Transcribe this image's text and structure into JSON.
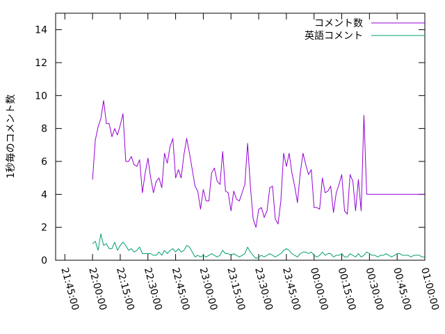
{
  "chart_data": {
    "type": "line",
    "title": "",
    "xlabel": "",
    "ylabel": "1秒毎のコメント数",
    "ylim": [
      0,
      15
    ],
    "yticks": [
      0,
      2,
      4,
      6,
      8,
      10,
      12,
      14
    ],
    "ytick_labels": [
      "0",
      "2",
      "4",
      "6",
      "8",
      "10",
      "12",
      "14"
    ],
    "xlim": [
      "21:40:00",
      "01:00:00"
    ],
    "xticks": [
      "21:45:00",
      "22:00:00",
      "22:15:00",
      "22:30:00",
      "22:45:00",
      "23:00:00",
      "23:15:00",
      "23:30:00",
      "23:45:00",
      "00:00:00",
      "00:15:00",
      "00:30:00",
      "00:45:00",
      "01:00:00"
    ],
    "grid": false,
    "legend_position": "top-right",
    "series": [
      {
        "name": "コメント数",
        "color": "#9400d3",
        "x": [
          "22:00:00",
          "22:01:30",
          "22:03:00",
          "22:04:30",
          "22:06:00",
          "22:07:30",
          "22:09:00",
          "22:10:30",
          "22:12:00",
          "22:13:30",
          "22:15:00",
          "22:16:30",
          "22:18:00",
          "22:19:30",
          "22:21:00",
          "22:22:30",
          "22:24:00",
          "22:25:30",
          "22:27:00",
          "22:28:30",
          "22:30:00",
          "22:31:30",
          "22:33:00",
          "22:34:30",
          "22:36:00",
          "22:37:30",
          "22:39:00",
          "22:40:30",
          "22:42:00",
          "22:43:30",
          "22:45:00",
          "22:46:30",
          "22:48:00",
          "22:49:30",
          "22:51:00",
          "22:52:30",
          "22:54:00",
          "22:55:30",
          "22:57:00",
          "22:58:30",
          "23:00:00",
          "23:01:30",
          "23:03:00",
          "23:04:30",
          "23:06:00",
          "23:07:30",
          "23:09:00",
          "23:10:30",
          "23:12:00",
          "23:13:30",
          "23:15:00",
          "23:16:30",
          "23:18:00",
          "23:19:30",
          "23:21:00",
          "23:22:30",
          "23:24:00",
          "23:25:30",
          "23:27:00",
          "23:28:30",
          "23:30:00",
          "23:31:30",
          "23:33:00",
          "23:34:30",
          "23:36:00",
          "23:37:30",
          "23:39:00",
          "23:40:30",
          "23:42:00",
          "23:43:30",
          "23:45:00",
          "23:46:30",
          "23:48:00",
          "23:49:30",
          "23:51:00",
          "23:52:30",
          "23:54:00",
          "23:55:30",
          "23:57:00",
          "23:58:30",
          "00:00:00",
          "00:01:30",
          "00:03:00",
          "00:04:30",
          "00:06:00",
          "00:07:30",
          "00:09:00",
          "00:10:30",
          "00:12:00",
          "00:13:30",
          "00:15:00",
          "00:16:30",
          "00:18:00",
          "00:19:30",
          "00:21:00",
          "00:22:30",
          "00:24:00",
          "00:25:30",
          "00:27:00",
          "00:28:30",
          "00:30:00",
          "00:31:30",
          "00:33:00",
          "00:34:30",
          "00:36:00",
          "00:37:30",
          "00:39:00",
          "00:40:30",
          "00:42:00",
          "00:43:30",
          "00:45:00",
          "00:46:30",
          "00:48:00",
          "00:49:30",
          "00:51:00",
          "00:52:30",
          "00:54:00",
          "00:55:30",
          "00:57:00",
          "00:58:00",
          "00:59:00",
          "00:59:40",
          "01:00:00"
        ],
        "values": [
          4.9,
          7.3,
          8.1,
          8.6,
          9.7,
          8.3,
          8.3,
          7.5,
          8.0,
          7.6,
          8.2,
          8.9,
          6.0,
          6.0,
          6.3,
          5.8,
          5.7,
          6.1,
          4.1,
          5.3,
          6.2,
          5.0,
          4.1,
          4.8,
          5.0,
          4.4,
          6.5,
          5.9,
          6.9,
          7.4,
          5.0,
          5.5,
          5.0,
          6.4,
          7.4,
          6.5,
          5.5,
          4.5,
          4.2,
          3.1,
          4.3,
          3.6,
          3.6,
          5.3,
          5.6,
          4.8,
          4.6,
          6.6,
          4.2,
          4.1,
          3.0,
          4.2,
          3.7,
          3.6,
          4.1,
          4.6,
          7.1,
          4.5,
          2.5,
          2.0,
          3.1,
          3.2,
          2.6,
          3.0,
          4.4,
          4.5,
          2.5,
          2.2,
          3.6,
          6.5,
          5.7,
          6.5,
          5.3,
          4.5,
          3.5,
          5.3,
          6.5,
          5.8,
          5.2,
          5.5,
          3.2,
          3.2,
          3.1,
          5.0,
          4.1,
          4.2,
          4.5,
          2.9,
          4.1,
          4.6,
          5.2,
          3.0,
          2.8,
          5.2,
          4.8,
          3.0,
          4.9,
          3.0,
          8.8,
          4.0,
          4.0,
          4.0,
          4.0,
          4.0,
          4.0,
          4.0,
          4.0,
          4.0,
          4.0,
          4.0,
          4.0,
          4.0,
          4.0,
          4.0,
          4.0,
          4.0,
          4.0,
          4.0,
          4.0,
          4.0,
          4.0,
          4.0,
          4.0
        ]
      },
      {
        "name": "英語コメント",
        "color": "#009e73",
        "x": [
          "22:00:00",
          "22:01:30",
          "22:03:00",
          "22:04:30",
          "22:06:00",
          "22:07:30",
          "22:09:00",
          "22:10:30",
          "22:12:00",
          "22:13:30",
          "22:15:00",
          "22:16:30",
          "22:18:00",
          "22:19:30",
          "22:21:00",
          "22:22:30",
          "22:24:00",
          "22:25:30",
          "22:27:00",
          "22:28:30",
          "22:30:00",
          "22:31:30",
          "22:33:00",
          "22:34:30",
          "22:36:00",
          "22:37:30",
          "22:39:00",
          "22:40:30",
          "22:42:00",
          "22:43:30",
          "22:45:00",
          "22:46:30",
          "22:48:00",
          "22:49:30",
          "22:51:00",
          "22:52:30",
          "22:54:00",
          "22:55:30",
          "22:57:00",
          "22:58:30",
          "23:00:00",
          "23:01:30",
          "23:03:00",
          "23:04:30",
          "23:06:00",
          "23:07:30",
          "23:09:00",
          "23:10:30",
          "23:12:00",
          "23:13:30",
          "23:15:00",
          "23:16:30",
          "23:18:00",
          "23:19:30",
          "23:21:00",
          "23:22:30",
          "23:24:00",
          "23:25:30",
          "23:27:00",
          "23:28:30",
          "23:30:00",
          "23:31:30",
          "23:33:00",
          "23:34:30",
          "23:36:00",
          "23:37:30",
          "23:39:00",
          "23:40:30",
          "23:42:00",
          "23:43:30",
          "23:45:00",
          "23:46:30",
          "23:48:00",
          "23:49:30",
          "23:51:00",
          "23:52:30",
          "23:54:00",
          "23:55:30",
          "23:57:00",
          "23:58:30",
          "00:00:00",
          "00:01:30",
          "00:03:00",
          "00:04:30",
          "00:06:00",
          "00:07:30",
          "00:09:00",
          "00:10:30",
          "00:12:00",
          "00:13:30",
          "00:15:00",
          "00:16:30",
          "00:18:00",
          "00:19:30",
          "00:21:00",
          "00:22:30",
          "00:24:00",
          "00:25:30",
          "00:27:00",
          "00:28:30",
          "00:30:00",
          "00:31:30",
          "00:33:00",
          "00:34:30",
          "00:36:00",
          "00:37:30",
          "00:39:00",
          "00:40:30",
          "00:42:00",
          "00:43:30",
          "00:45:00",
          "00:46:30",
          "00:48:00",
          "00:49:30",
          "00:51:00",
          "00:52:30",
          "00:54:00",
          "00:55:30",
          "00:57:00",
          "00:58:30",
          "01:00:00"
        ],
        "values": [
          1.0,
          1.15,
          0.6,
          1.6,
          0.9,
          1.0,
          0.7,
          0.7,
          1.1,
          0.6,
          0.9,
          1.1,
          0.9,
          0.6,
          0.7,
          0.5,
          0.6,
          0.8,
          0.4,
          0.4,
          0.4,
          0.4,
          0.3,
          0.3,
          0.5,
          0.3,
          0.6,
          0.4,
          0.6,
          0.7,
          0.5,
          0.7,
          0.5,
          0.6,
          0.9,
          0.8,
          0.5,
          0.2,
          0.3,
          0.2,
          0.3,
          0.2,
          0.3,
          0.4,
          0.3,
          0.2,
          0.3,
          0.6,
          0.4,
          0.4,
          0.3,
          0.4,
          0.3,
          0.2,
          0.3,
          0.4,
          0.8,
          0.5,
          0.3,
          0.1,
          0.2,
          0.3,
          0.2,
          0.3,
          0.4,
          0.3,
          0.2,
          0.3,
          0.4,
          0.6,
          0.7,
          0.6,
          0.4,
          0.3,
          0.2,
          0.4,
          0.5,
          0.5,
          0.4,
          0.5,
          0.3,
          0.2,
          0.3,
          0.5,
          0.3,
          0.4,
          0.4,
          0.2,
          0.3,
          0.3,
          0.4,
          0.2,
          0.2,
          0.4,
          0.3,
          0.2,
          0.4,
          0.2,
          0.3,
          0.5,
          0.4,
          0.3,
          0.3,
          0.2,
          0.3,
          0.3,
          0.4,
          0.3,
          0.2,
          0.3,
          0.4,
          0.4,
          0.3,
          0.3,
          0.3,
          0.2,
          0.3,
          0.3,
          0.3,
          0.2,
          0.2
        ]
      }
    ]
  }
}
